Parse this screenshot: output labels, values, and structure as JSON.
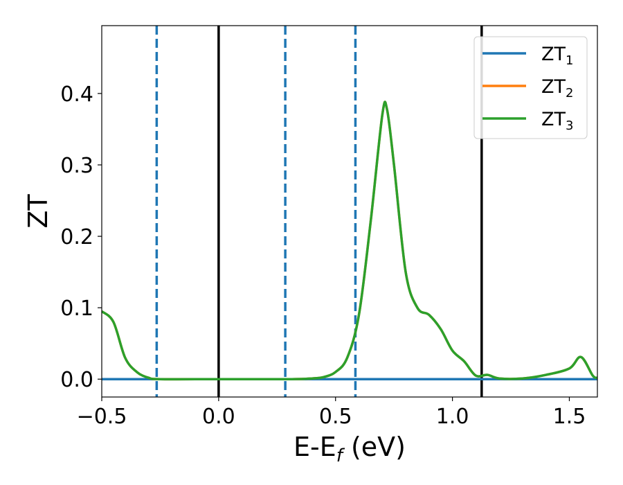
{
  "chart_data": {
    "type": "line",
    "xlabel": {
      "main": "E-E",
      "sub": "f",
      "unit": " (eV)"
    },
    "ylabel": "ZT",
    "xlim": [
      -0.5,
      1.62
    ],
    "ylim": [
      -0.025,
      0.495
    ],
    "xticks": [
      -0.5,
      0.0,
      0.5,
      1.0,
      1.5
    ],
    "xtick_labels": [
      "−0.5",
      "0.0",
      "0.5",
      "1.0",
      "1.5"
    ],
    "yticks": [
      0.0,
      0.1,
      0.2,
      0.3,
      0.4
    ],
    "ytick_labels": [
      "0.0",
      "0.1",
      "0.2",
      "0.3",
      "0.4"
    ],
    "grid": false,
    "legend_position": "top-right",
    "vlines": [
      {
        "x": -0.265,
        "style": "dashed",
        "color": "#1f77b4"
      },
      {
        "x": 0.0,
        "style": "solid",
        "color": "#000000"
      },
      {
        "x": 0.285,
        "style": "dashed",
        "color": "#1f77b4"
      },
      {
        "x": 0.585,
        "style": "dashed",
        "color": "#1f77b4"
      },
      {
        "x": 1.125,
        "style": "solid",
        "color": "#000000"
      }
    ],
    "series": [
      {
        "name": "ZT",
        "sub": "1",
        "color": "#1f77b4",
        "x": [
          -0.5,
          1.62
        ],
        "y": [
          0.0,
          0.0
        ]
      },
      {
        "name": "ZT",
        "sub": "2",
        "color": "#ff7f0e",
        "x": [
          -0.5,
          -0.45,
          -0.4,
          -0.35,
          -0.3,
          -0.25,
          0.0,
          0.3,
          0.4,
          0.45,
          0.5,
          0.55,
          0.6,
          0.65,
          0.7,
          0.72,
          0.75,
          0.8,
          0.85,
          0.9,
          0.95,
          1.0,
          1.05,
          1.1,
          1.15,
          1.2,
          1.3,
          1.4,
          1.5,
          1.55,
          1.6,
          1.62
        ],
        "y": [
          0.095,
          0.08,
          0.03,
          0.01,
          0.002,
          0.0,
          0.0,
          0.0,
          0.001,
          0.003,
          0.01,
          0.03,
          0.09,
          0.22,
          0.37,
          0.378,
          0.3,
          0.15,
          0.1,
          0.09,
          0.07,
          0.04,
          0.025,
          0.005,
          0.006,
          0.001,
          0.001,
          0.006,
          0.015,
          0.031,
          0.005,
          0.002
        ]
      },
      {
        "name": "ZT",
        "sub": "3",
        "color": "#2ca02c",
        "x": [
          -0.5,
          -0.45,
          -0.4,
          -0.35,
          -0.3,
          -0.25,
          0.0,
          0.3,
          0.4,
          0.45,
          0.5,
          0.55,
          0.6,
          0.65,
          0.7,
          0.72,
          0.75,
          0.8,
          0.85,
          0.9,
          0.95,
          1.0,
          1.05,
          1.1,
          1.15,
          1.2,
          1.3,
          1.4,
          1.5,
          1.55,
          1.6,
          1.62
        ],
        "y": [
          0.095,
          0.08,
          0.03,
          0.01,
          0.002,
          0.0,
          0.0,
          0.0,
          0.001,
          0.003,
          0.01,
          0.03,
          0.09,
          0.22,
          0.37,
          0.378,
          0.3,
          0.15,
          0.1,
          0.09,
          0.07,
          0.04,
          0.025,
          0.005,
          0.006,
          0.001,
          0.001,
          0.006,
          0.015,
          0.031,
          0.005,
          0.002
        ]
      }
    ]
  }
}
